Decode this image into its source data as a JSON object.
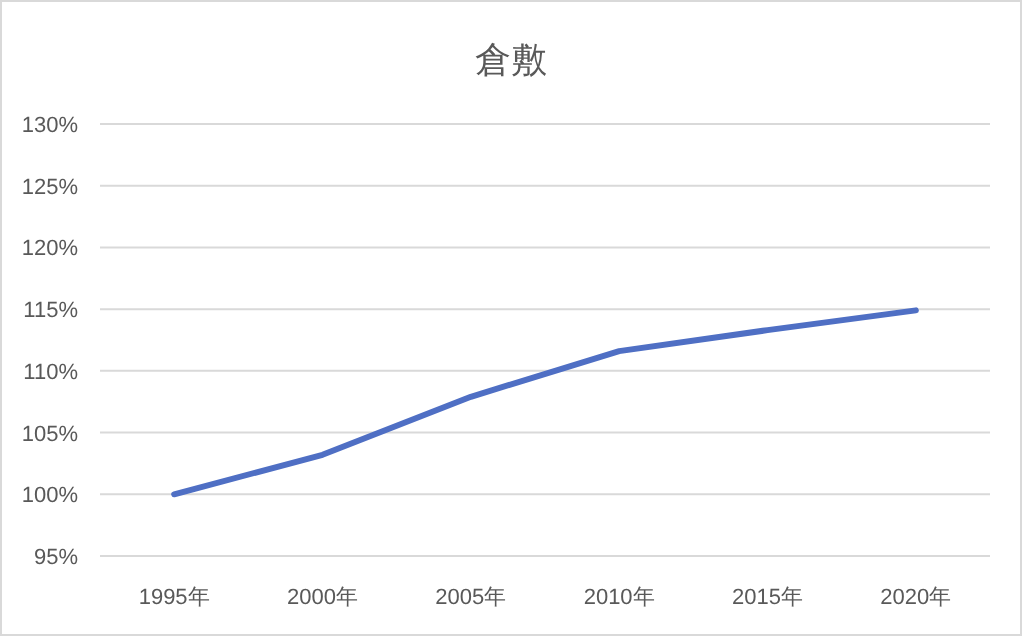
{
  "chart_data": {
    "type": "line",
    "title": "倉敷",
    "categories": [
      "1995年",
      "2000年",
      "2005年",
      "2010年",
      "2015年",
      "2020年"
    ],
    "series": [
      {
        "color": "#4f6fc4",
        "values": [
          100,
          103.2,
          107.9,
          111.6,
          113.3,
          114.9
        ]
      }
    ],
    "ylim": [
      95,
      130
    ],
    "yticks": [
      {
        "value": 95,
        "label": "95%"
      },
      {
        "value": 100,
        "label": "100%"
      },
      {
        "value": 105,
        "label": "105%"
      },
      {
        "value": 110,
        "label": "110%"
      },
      {
        "value": 115,
        "label": "115%"
      },
      {
        "value": 120,
        "label": "120%"
      },
      {
        "value": 125,
        "label": "125%"
      },
      {
        "value": 130,
        "label": "130%"
      }
    ],
    "grid": "y"
  }
}
